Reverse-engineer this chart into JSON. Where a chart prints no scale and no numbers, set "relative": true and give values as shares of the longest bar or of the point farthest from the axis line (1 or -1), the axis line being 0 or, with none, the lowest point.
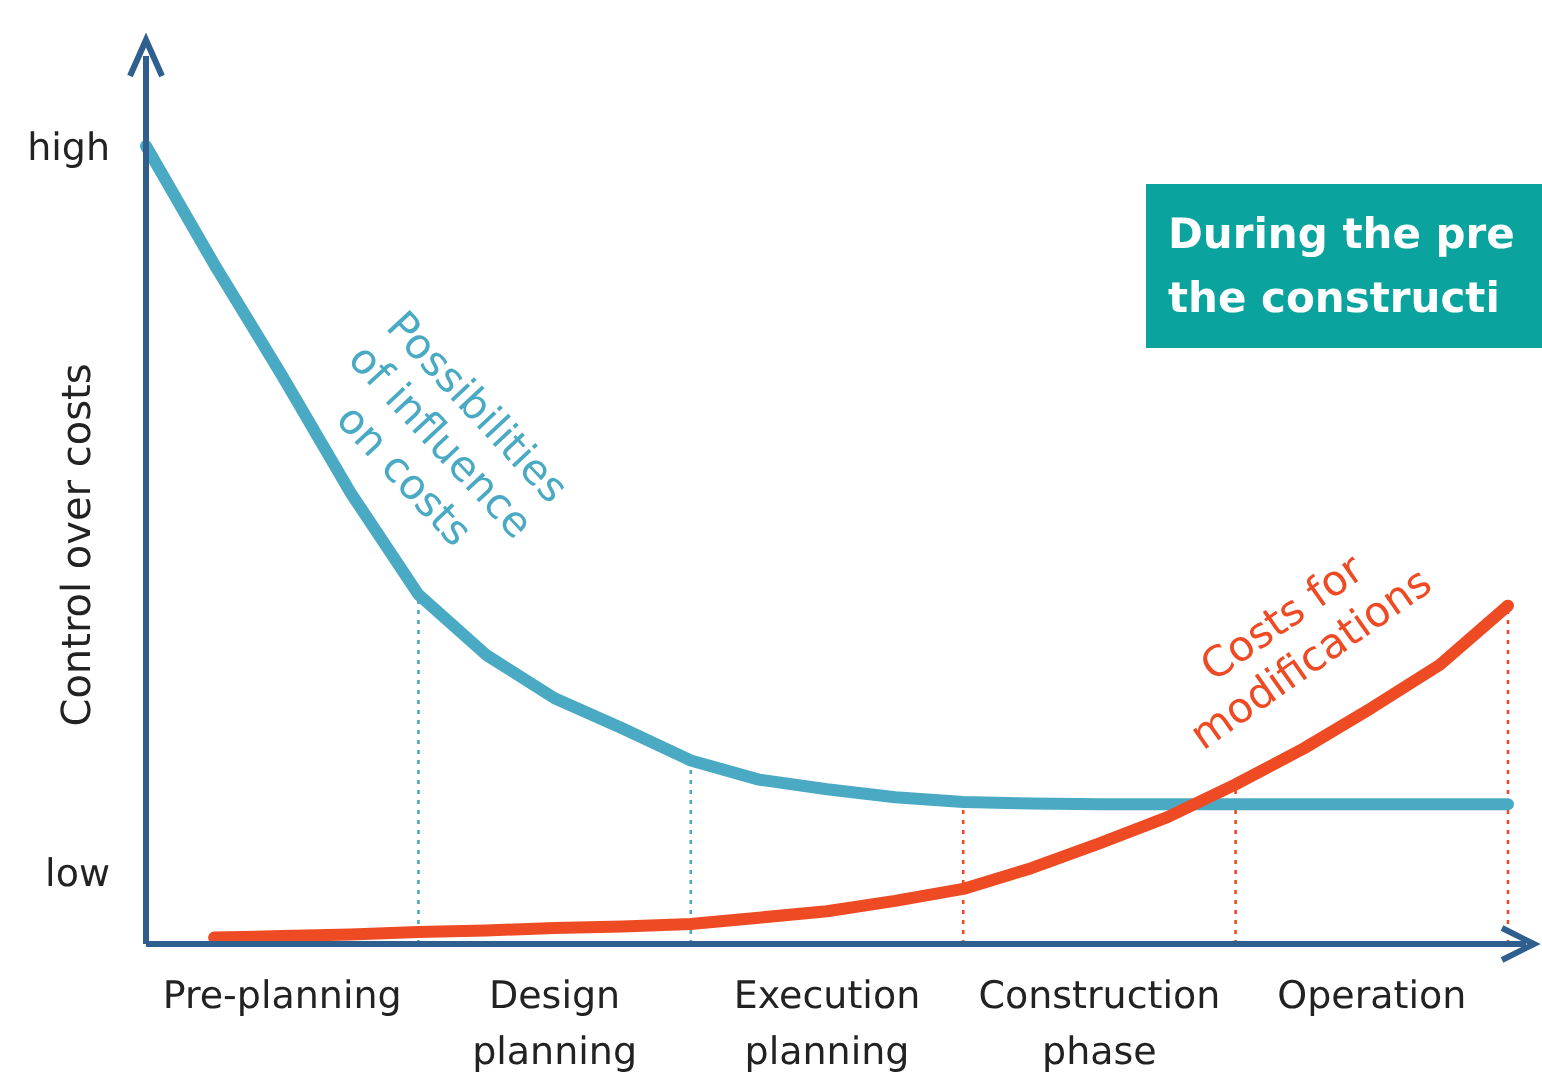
{
  "chart_data": {
    "type": "line",
    "relative": true,
    "ylabel": "Control over costs",
    "categories": [
      null,
      null,
      "Pre-planning",
      null,
      null,
      null,
      "Design planning",
      null,
      null,
      null,
      "Execution planning",
      null,
      null,
      null,
      "Construction phase",
      null,
      null,
      null,
      "Operation",
      null,
      null
    ],
    "series": [
      {
        "name": "Possibilities of influence on costs",
        "color": "#4aaac4",
        "values": [
          1,
          0.852,
          0.712,
          0.566,
          0.438,
          0.362,
          0.308,
          0.27,
          0.23,
          0.206,
          0.194,
          0.184,
          0.178,
          0.176,
          0.175,
          0.175,
          0.175,
          0.175,
          0.175,
          0.175,
          0.175
        ]
      },
      {
        "name": "Costs for modifications",
        "color": "#ee4a24",
        "values": [
          null,
          0.008,
          0.01,
          0.012,
          0.015,
          0.017,
          0.02,
          0.022,
          0.025,
          0.033,
          0.041,
          0.054,
          0.069,
          0.095,
          0.126,
          0.159,
          0.2,
          0.245,
          0.296,
          0.35,
          0.424
        ]
      }
    ],
    "annotations": [
      "high",
      "low",
      "During the pre\nthe constructi"
    ],
    "line_style": "solid",
    "marker": "none",
    "legend": false
  }
}
